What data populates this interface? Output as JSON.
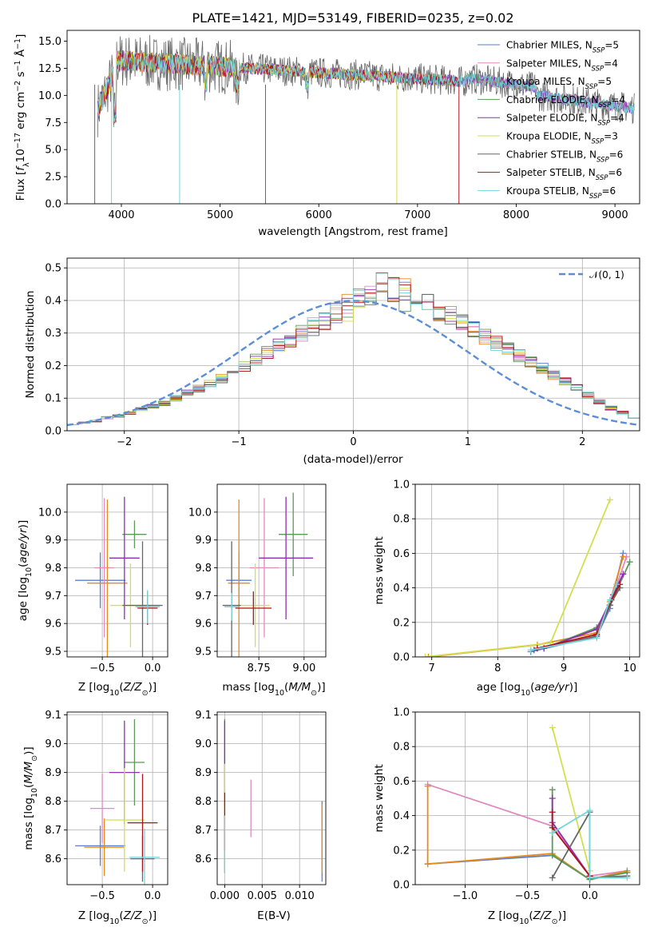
{
  "chart_data": [
    {
      "type": "line",
      "title": "PLATE=1421, MJD=53149, FIBERID=0235, z=0.02",
      "xlabel": "wavelength [Angstrom, rest frame]",
      "ylabel": "Flux [fλ10⁻¹⁷ erg cm⁻² s⁻¹ Å⁻¹]",
      "xlim": [
        3450,
        9250
      ],
      "ylim": [
        0,
        16
      ],
      "xticks": [
        4000,
        5000,
        6000,
        7000,
        8000,
        9000
      ],
      "yticks": [
        0.0,
        2.5,
        5.0,
        7.5,
        10.0,
        12.5,
        15.0
      ],
      "grid": false,
      "legend_position": "top-right",
      "series": [
        {
          "name": "Chabrier MILES, N_SSP=5",
          "color": "#5b7fd1",
          "x": [
            3750,
            9200
          ],
          "y": [
            11.5,
            7.5
          ]
        },
        {
          "name": "Salpeter MILES, N_SSP=4",
          "color": "#e08ac0",
          "x": [
            3750,
            9200
          ],
          "y": [
            11.5,
            7.5
          ]
        },
        {
          "name": "Kroupa MILES, N_SSP=5",
          "color": "#e68a1e",
          "x": [
            3750,
            9200
          ],
          "y": [
            11.5,
            7.5
          ]
        },
        {
          "name": "Chabrier ELODIE, N_SSP=4",
          "color": "#5a9a5a",
          "x": [
            3750,
            9200
          ],
          "y": [
            11.5,
            7.5
          ]
        },
        {
          "name": "Salpeter ELODIE, N_SSP=4",
          "color": "#8e2fb0",
          "x": [
            3750,
            9200
          ],
          "y": [
            11.5,
            7.5
          ]
        },
        {
          "name": "Kroupa ELODIE, N_SSP=3",
          "color": "#d2e04c",
          "x": [
            3750,
            9200
          ],
          "y": [
            11.5,
            7.5
          ]
        },
        {
          "name": "Chabrier STELIB, N_SSP=6",
          "color": "#666666",
          "x": [
            3750,
            9200
          ],
          "y": [
            11.5,
            7.5
          ]
        },
        {
          "name": "Salpeter STELIB, N_SSP=6",
          "color": "#b0121a",
          "x": [
            3750,
            9200
          ],
          "y": [
            11.5,
            7.5
          ]
        },
        {
          "name": "Kroupa STELIB, N_SSP=6",
          "color": "#76d6dc",
          "x": [
            3750,
            9200
          ],
          "y": [
            11.5,
            7.5
          ]
        }
      ]
    },
    {
      "type": "histogram",
      "xlabel": "(data-model)/error",
      "ylabel": "Normed distribution",
      "xlim": [
        -2.5,
        2.5
      ],
      "ylim": [
        0,
        0.53
      ],
      "xticks": [
        -2,
        -1,
        0,
        1,
        2
      ],
      "yticks": [
        0.0,
        0.1,
        0.2,
        0.3,
        0.4,
        0.5
      ],
      "grid": true,
      "legend_position": "top-right",
      "reference_curve": {
        "name": "N(0,1)",
        "color": "#5b8ed6",
        "style": "dashed"
      },
      "bin_width": 0.1,
      "bin_range": [
        -2.5,
        2.5
      ],
      "density": [
        0.02,
        0.025,
        0.03,
        0.04,
        0.045,
        0.055,
        0.065,
        0.075,
        0.085,
        0.1,
        0.115,
        0.13,
        0.145,
        0.16,
        0.18,
        0.2,
        0.22,
        0.24,
        0.26,
        0.28,
        0.3,
        0.32,
        0.34,
        0.36,
        0.38,
        0.4,
        0.42,
        0.44,
        0.43,
        0.42,
        0.41,
        0.39,
        0.37,
        0.35,
        0.33,
        0.31,
        0.29,
        0.27,
        0.25,
        0.23,
        0.21,
        0.19,
        0.17,
        0.15,
        0.13,
        0.11,
        0.09,
        0.07,
        0.055,
        0.04
      ],
      "series_colors": [
        "#5b7fd1",
        "#e08ac0",
        "#e68a1e",
        "#5a9a5a",
        "#8e2fb0",
        "#d2e04c",
        "#666666",
        "#b0121a",
        "#76d6dc"
      ]
    },
    {
      "type": "errorbar",
      "xlabel": "Z [log10(Z/Z⊙)]",
      "ylabel": "age  [log10(age/yr)]",
      "xlim": [
        -0.85,
        0.15
      ],
      "ylim": [
        9.48,
        10.1
      ],
      "xticks": [
        -0.5,
        0.0
      ],
      "yticks": [
        9.5,
        9.6,
        9.7,
        9.8,
        9.9,
        10.0
      ],
      "grid": true,
      "points": [
        {
          "color": "#5b7fd1",
          "x": -0.52,
          "y": 9.755,
          "xerr": 0.25,
          "yerr": 0.1
        },
        {
          "color": "#e08ac0",
          "x": -0.48,
          "y": 9.8,
          "xerr": 0.1,
          "yerr": 0.25
        },
        {
          "color": "#e68a1e",
          "x": -0.45,
          "y": 9.745,
          "xerr": 0.2,
          "yerr": 0.3
        },
        {
          "color": "#5a9a5a",
          "x": -0.18,
          "y": 9.92,
          "xerr": 0.12,
          "yerr": 0.05
        },
        {
          "color": "#8e2fb0",
          "x": -0.28,
          "y": 9.835,
          "xerr": 0.15,
          "yerr": 0.22
        },
        {
          "color": "#d2e04c",
          "x": -0.22,
          "y": 9.665,
          "xerr": 0.2,
          "yerr": 0.15
        },
        {
          "color": "#666666",
          "x": -0.1,
          "y": 9.665,
          "xerr": 0.2,
          "yerr": 0.23
        },
        {
          "color": "#b0121a",
          "x": -0.05,
          "y": 9.655,
          "xerr": 0.1,
          "yerr": 0.06
        },
        {
          "color": "#76d6dc",
          "x": -0.05,
          "y": 9.66,
          "xerr": 0.12,
          "yerr": 0.06
        }
      ]
    },
    {
      "type": "errorbar",
      "xlabel": "mass [log10(M/M⊙)]",
      "xlim": [
        8.52,
        9.12
      ],
      "ylim": [
        9.48,
        10.1
      ],
      "xticks": [
        8.75,
        9.0
      ],
      "yticks": [
        9.5,
        9.6,
        9.7,
        9.8,
        9.9,
        10.0
      ],
      "grid": true,
      "points": [
        {
          "color": "#5b7fd1",
          "x": 8.64,
          "y": 9.755,
          "xerr": 0.07,
          "yerr": 0.1
        },
        {
          "color": "#e08ac0",
          "x": 8.78,
          "y": 9.8,
          "xerr": 0.08,
          "yerr": 0.25
        },
        {
          "color": "#e68a1e",
          "x": 8.64,
          "y": 9.745,
          "xerr": 0.06,
          "yerr": 0.3
        },
        {
          "color": "#5a9a5a",
          "x": 8.94,
          "y": 9.92,
          "xerr": 0.08,
          "yerr": 0.15
        },
        {
          "color": "#8e2fb0",
          "x": 8.9,
          "y": 9.835,
          "xerr": 0.15,
          "yerr": 0.22
        },
        {
          "color": "#d2e04c",
          "x": 8.73,
          "y": 9.665,
          "xerr": 0.08,
          "yerr": 0.15
        },
        {
          "color": "#666666",
          "x": 8.6,
          "y": 9.665,
          "xerr": 0.05,
          "yerr": 0.23
        },
        {
          "color": "#b0121a",
          "x": 8.72,
          "y": 9.655,
          "xerr": 0.1,
          "yerr": 0.06
        },
        {
          "color": "#76d6dc",
          "x": 8.6,
          "y": 9.66,
          "xerr": 0.04,
          "yerr": 0.05
        }
      ]
    },
    {
      "type": "line",
      "xlabel": "age  [log10(age/yr)]",
      "ylabel": "mass weight",
      "xlim": [
        6.75,
        10.15
      ],
      "ylim": [
        0,
        1.0
      ],
      "xticks": [
        7,
        8,
        9,
        10
      ],
      "yticks": [
        0.0,
        0.2,
        0.4,
        0.6,
        0.8,
        1.0
      ],
      "grid": true,
      "series": [
        {
          "color": "#5b7fd1",
          "x": [
            8.5,
            9.5,
            9.7,
            9.9
          ],
          "y": [
            0.03,
            0.12,
            0.28,
            0.6
          ]
        },
        {
          "color": "#e08ac0",
          "x": [
            8.6,
            9.5,
            9.7,
            9.95
          ],
          "y": [
            0.05,
            0.13,
            0.3,
            0.58
          ]
        },
        {
          "color": "#e68a1e",
          "x": [
            6.95,
            8.6,
            9.5,
            9.7,
            9.9
          ],
          "y": [
            0.0,
            0.07,
            0.14,
            0.32,
            0.58
          ]
        },
        {
          "color": "#5a9a5a",
          "x": [
            8.7,
            9.5,
            9.7,
            10.0
          ],
          "y": [
            0.05,
            0.17,
            0.3,
            0.55
          ]
        },
        {
          "color": "#8e2fb0",
          "x": [
            8.7,
            9.5,
            9.75,
            9.9
          ],
          "y": [
            0.05,
            0.16,
            0.36,
            0.48
          ]
        },
        {
          "color": "#d2e04c",
          "x": [
            6.9,
            8.8,
            9.7
          ],
          "y": [
            0.0,
            0.08,
            0.91
          ]
        },
        {
          "color": "#666666",
          "x": [
            8.55,
            9.5,
            9.7,
            9.85
          ],
          "y": [
            0.04,
            0.12,
            0.3,
            0.4
          ]
        },
        {
          "color": "#b0121a",
          "x": [
            8.6,
            9.5,
            9.72,
            9.85
          ],
          "y": [
            0.05,
            0.13,
            0.33,
            0.42
          ]
        },
        {
          "color": "#76d6dc",
          "x": [
            8.5,
            9.5,
            9.7,
            9.8
          ],
          "y": [
            0.04,
            0.11,
            0.33,
            0.42
          ]
        }
      ]
    },
    {
      "type": "errorbar",
      "xlabel": "Z [log10(Z/Z⊙)]",
      "ylabel": "mass [log10(M/M⊙)]",
      "xlim": [
        -0.85,
        0.15
      ],
      "ylim": [
        8.51,
        9.11
      ],
      "xticks": [
        -0.5,
        0.0
      ],
      "yticks": [
        8.6,
        8.7,
        8.8,
        8.9,
        9.0,
        9.1
      ],
      "grid": true,
      "points": [
        {
          "color": "#5b7fd1",
          "x": -0.52,
          "y": 8.645,
          "xerr": 0.25,
          "yerr": 0.07
        },
        {
          "color": "#e08ac0",
          "x": -0.5,
          "y": 8.775,
          "xerr": 0.12,
          "yerr": 0.12
        },
        {
          "color": "#e68a1e",
          "x": -0.48,
          "y": 8.64,
          "xerr": 0.2,
          "yerr": 0.1
        },
        {
          "color": "#5a9a5a",
          "x": -0.18,
          "y": 8.935,
          "xerr": 0.1,
          "yerr": 0.15
        },
        {
          "color": "#8e2fb0",
          "x": -0.28,
          "y": 8.9,
          "xerr": 0.15,
          "yerr": 0.18
        },
        {
          "color": "#d2e04c",
          "x": -0.28,
          "y": 8.735,
          "xerr": 0.2,
          "yerr": 0.18
        },
        {
          "color": "#666666",
          "x": -0.1,
          "y": 8.6,
          "xerr": 0.12,
          "yerr": 0.08
        },
        {
          "color": "#b0121a",
          "x": -0.1,
          "y": 8.725,
          "xerr": 0.15,
          "yerr": 0.17
        },
        {
          "color": "#76d6dc",
          "x": -0.08,
          "y": 8.605,
          "xerr": 0.15,
          "yerr": 0.1
        }
      ]
    },
    {
      "type": "errorbar",
      "xlabel": "E(B-V)",
      "xlim": [
        -0.001,
        0.0135
      ],
      "ylim": [
        8.51,
        9.11
      ],
      "xticks": [
        0.0,
        0.005,
        0.01
      ],
      "yticks": [
        8.6,
        8.7,
        8.8,
        8.9,
        9.0,
        9.1
      ],
      "grid": true,
      "points": [
        {
          "color": "#5b7fd1",
          "x": 0.013,
          "y": 8.66,
          "yerr": 0.14
        },
        {
          "color": "#e08ac0",
          "x": 0.0035,
          "y": 8.775,
          "yerr": 0.1
        },
        {
          "color": "#e68a1e",
          "x": 0.013,
          "y": 8.67,
          "yerr": 0.12
        },
        {
          "color": "#5a9a5a",
          "x": 0.0,
          "y": 8.935,
          "yerr": 0.15
        },
        {
          "color": "#8e2fb0",
          "x": 0.0,
          "y": 8.95,
          "yerr": 0.13
        },
        {
          "color": "#d2e04c",
          "x": 0.0,
          "y": 8.75,
          "yerr": 0.18
        },
        {
          "color": "#666666",
          "x": 0.0,
          "y": 8.65,
          "yerr": 0.1
        },
        {
          "color": "#b0121a",
          "x": 0.0,
          "y": 8.73,
          "yerr": 0.1
        },
        {
          "color": "#76d6dc",
          "x": 0.0,
          "y": 8.65,
          "yerr": 0.1
        }
      ]
    },
    {
      "type": "line",
      "xlabel": "Z [log10(Z/Z⊙)]",
      "ylabel": "mass weight",
      "xlim": [
        -1.4,
        0.4
      ],
      "ylim": [
        0,
        1.0
      ],
      "xticks": [
        -1.0,
        -0.5,
        0.0
      ],
      "yticks": [
        0.0,
        0.2,
        0.4,
        0.6,
        0.8,
        1.0
      ],
      "grid": true,
      "series": [
        {
          "color": "#5b7fd1",
          "x": [
            -1.3,
            -0.3,
            0.0,
            0.3
          ],
          "y": [
            0.12,
            0.17,
            0.03,
            0.07
          ]
        },
        {
          "color": "#e08ac0",
          "x": [
            -1.3,
            -0.3,
            0.0,
            0.3
          ],
          "y": [
            0.58,
            0.34,
            0.05,
            0.08
          ]
        },
        {
          "color": "#e68a1e",
          "x": [
            -1.3,
            -1.3,
            -0.3,
            0.0,
            0.3
          ],
          "y": [
            0.57,
            0.12,
            0.18,
            0.03,
            0.08
          ]
        },
        {
          "color": "#5a9a5a",
          "x": [
            -0.3,
            -0.3,
            0.0,
            0.3
          ],
          "y": [
            0.55,
            0.17,
            0.03,
            0.07
          ]
        },
        {
          "color": "#8e2fb0",
          "x": [
            -0.3,
            -0.3,
            0.0
          ],
          "y": [
            0.5,
            0.36,
            0.05
          ]
        },
        {
          "color": "#d2e04c",
          "x": [
            -0.3,
            0.0
          ],
          "y": [
            0.91,
            0.08
          ]
        },
        {
          "color": "#666666",
          "x": [
            -0.3,
            0.0,
            0.0,
            0.3
          ],
          "y": [
            0.04,
            0.42,
            0.04,
            0.05
          ]
        },
        {
          "color": "#b0121a",
          "x": [
            -0.3,
            -0.3,
            0.0
          ],
          "y": [
            0.42,
            0.33,
            0.05
          ]
        },
        {
          "color": "#76d6dc",
          "x": [
            -0.3,
            0.0,
            0.0,
            0.3
          ],
          "y": [
            0.3,
            0.43,
            0.04,
            0.04
          ]
        }
      ]
    }
  ]
}
